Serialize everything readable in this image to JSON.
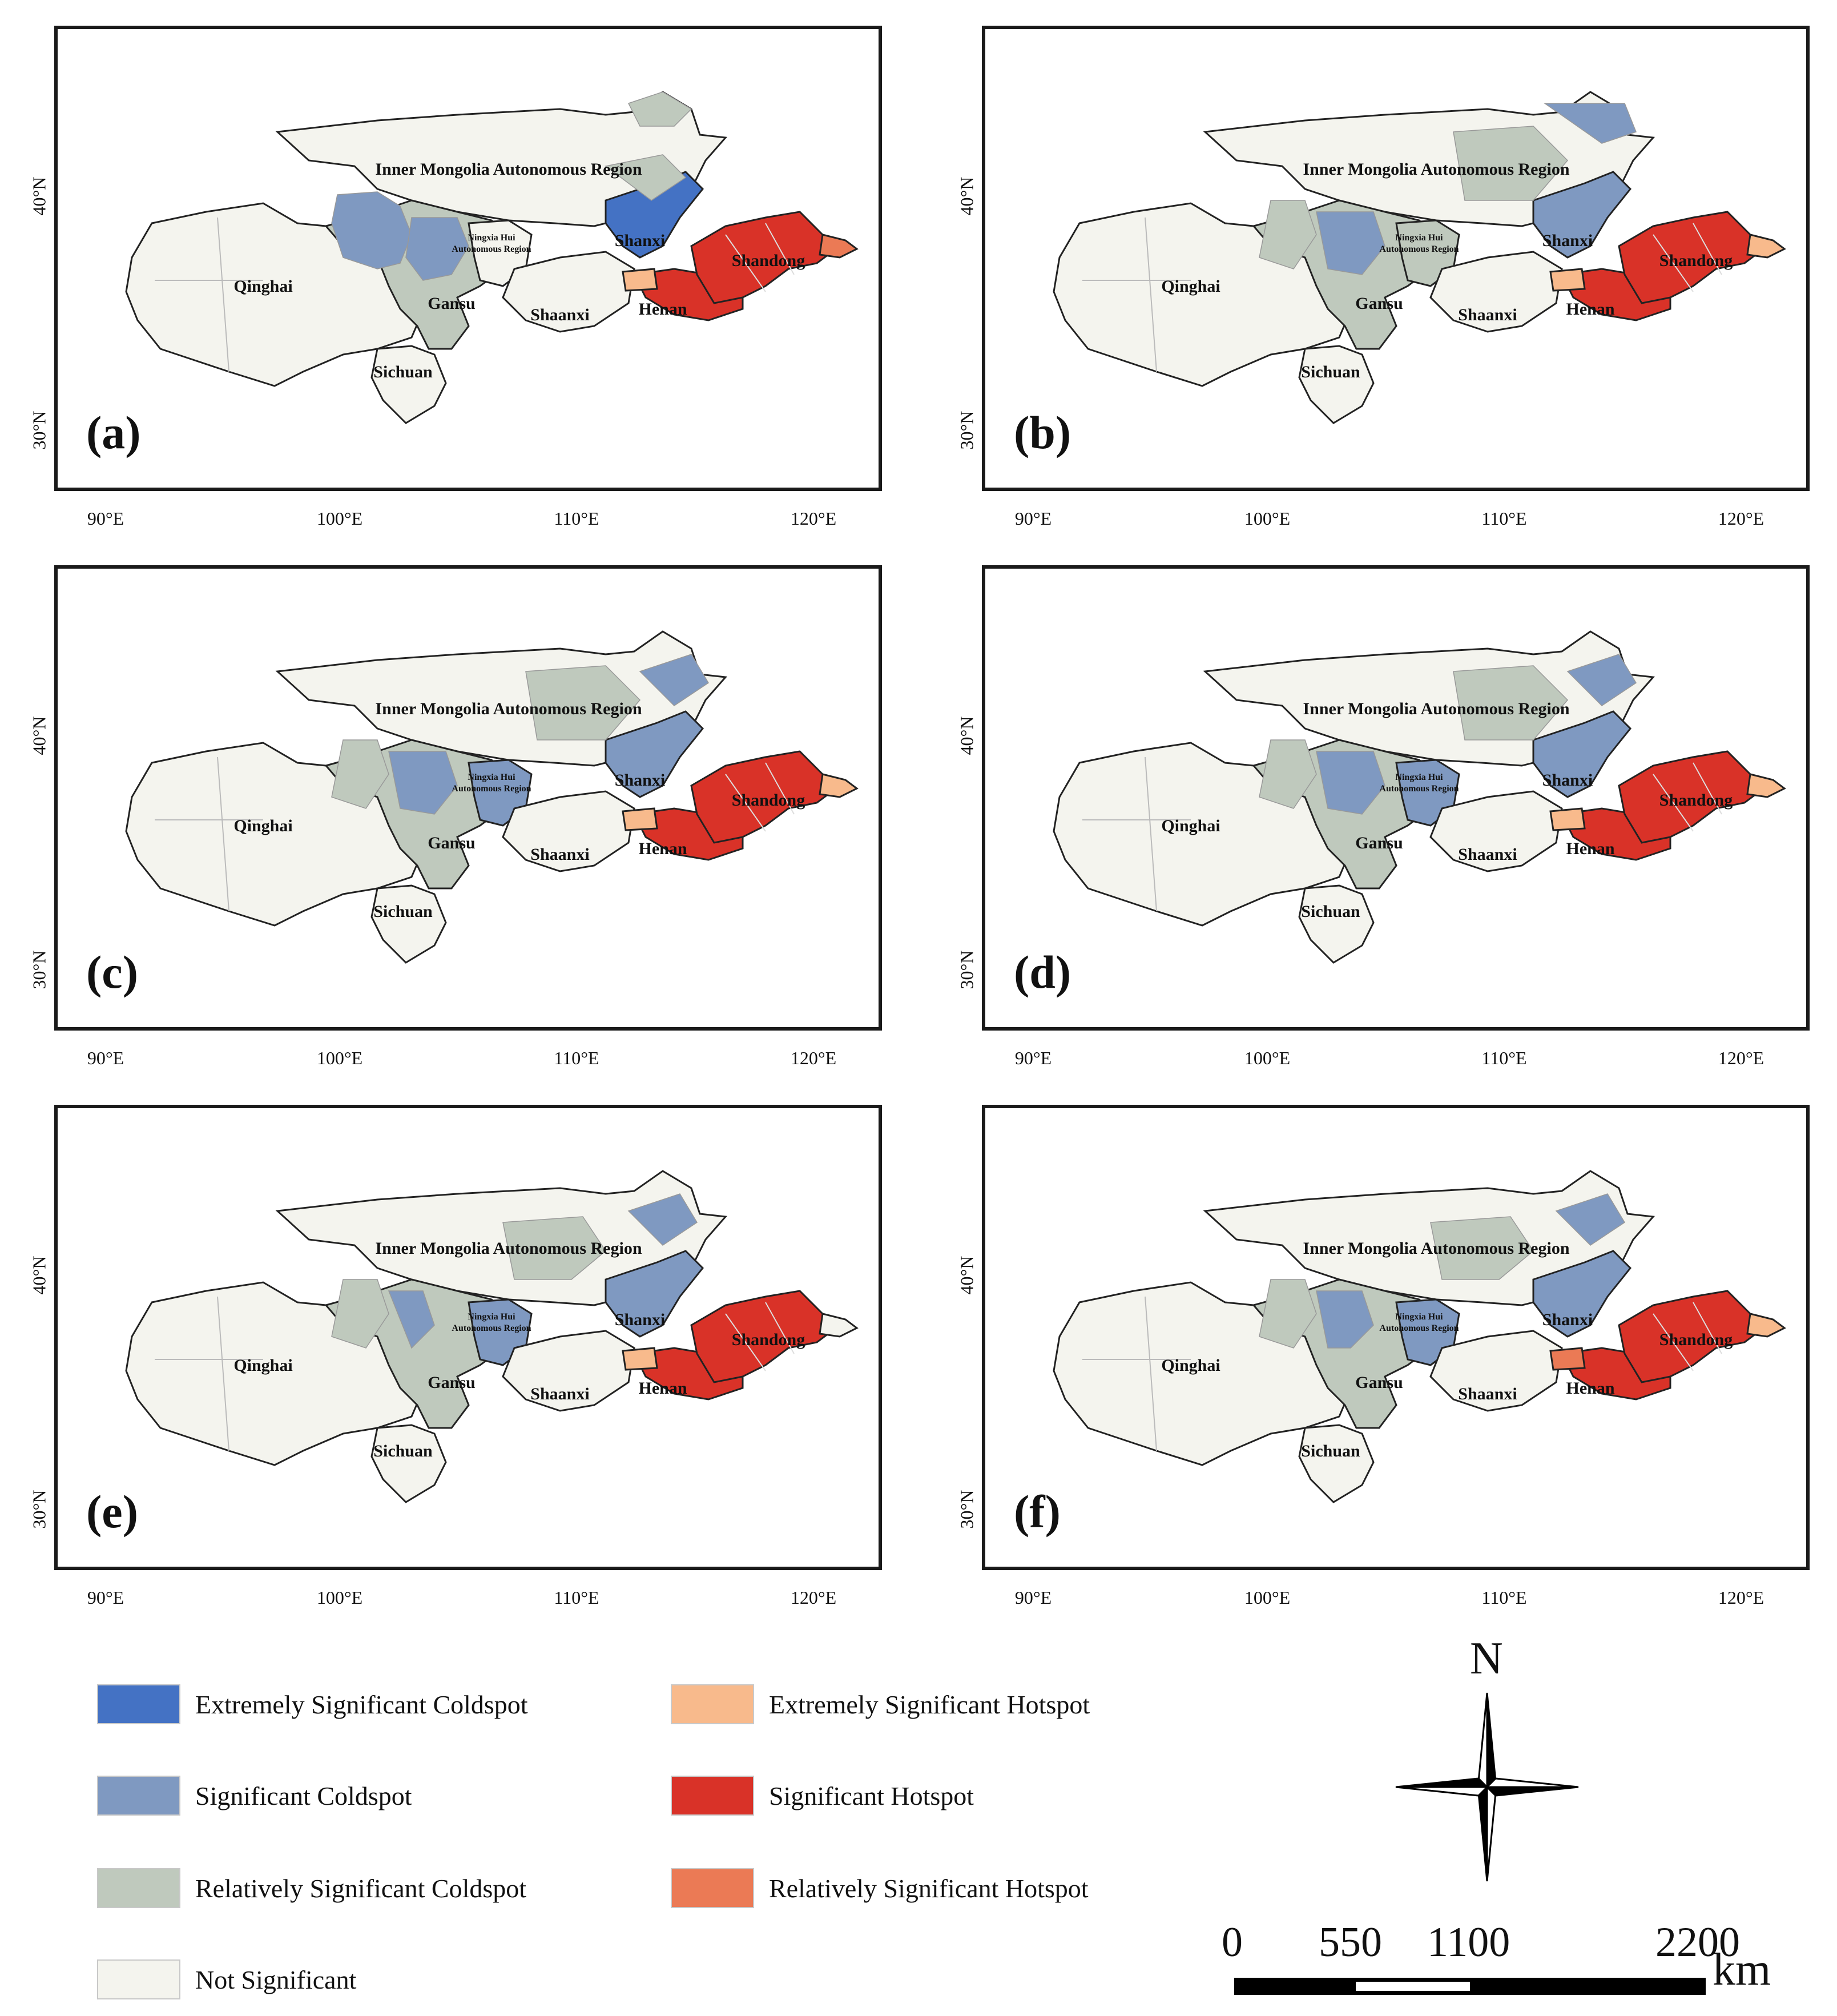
{
  "panels": [
    {
      "label": "(a)"
    },
    {
      "label": "(b)"
    },
    {
      "label": "(c)"
    },
    {
      "label": "(d)"
    },
    {
      "label": "(e)"
    },
    {
      "label": "(f)"
    }
  ],
  "axes": {
    "lon_ticks": [
      "90°E",
      "100°E",
      "110°E",
      "120°E"
    ],
    "lat_ticks": [
      "40°N",
      "30°N"
    ]
  },
  "provinces": {
    "inner_mongolia": "Inner Mongolia Autonomous Region",
    "qinghai": "Qinghai",
    "gansu": "Gansu",
    "ningxia": "Ningxia Hui Autonomous Region",
    "ningxia_line1": "Ningxia Hui",
    "ningxia_line2": "Autonomous Region",
    "shanxi": "Shanxi",
    "shaanxi": "Shaanxi",
    "henan": "Henan",
    "shandong": "Shandong",
    "sichuan": "Sichuan"
  },
  "legend": [
    {
      "label": "Extremely Significant Coldspot",
      "color": "#4472C4"
    },
    {
      "label": "Extremely Significant Hotspot",
      "color": "#F8BA8C"
    },
    {
      "label": "Significant Coldspot",
      "color": "#7F99C1"
    },
    {
      "label": "Significant Hotspot",
      "color": "#D93228"
    },
    {
      "label": "Relatively Significant Coldspot",
      "color": "#BFC9BD"
    },
    {
      "label": "Relatively Significant Hotspot",
      "color": "#EB7A55"
    },
    {
      "label": "Not Significant",
      "color": "#F4F4EE"
    }
  ],
  "north_arrow": {
    "label": "N"
  },
  "scale_bar": {
    "ticks": [
      "0",
      "550",
      "1100",
      "2200"
    ],
    "unit": "km"
  }
}
